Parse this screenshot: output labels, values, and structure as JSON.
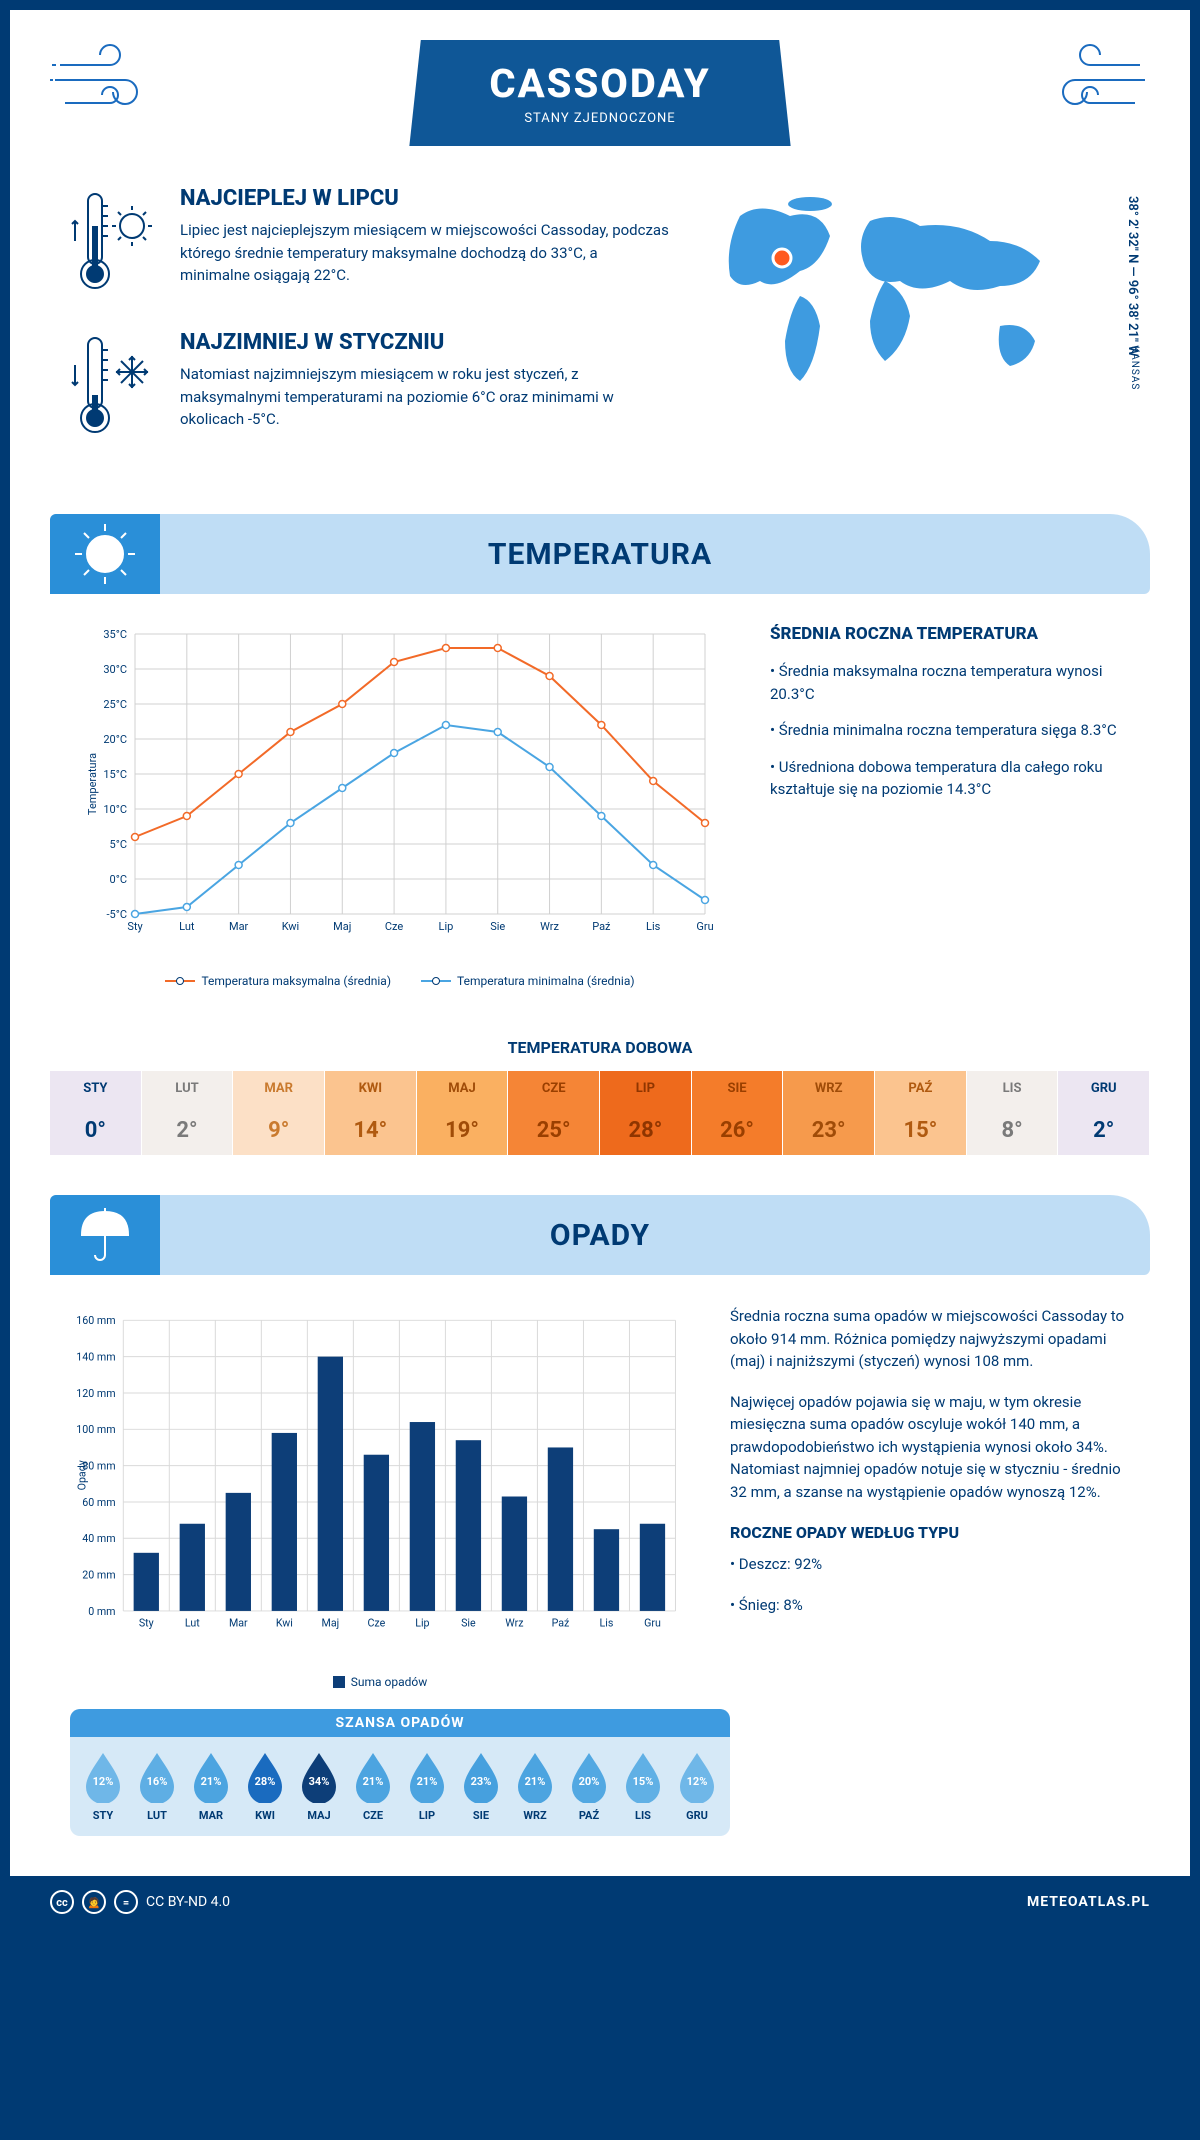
{
  "header": {
    "city": "CASSODAY",
    "country": "STANY ZJEDNOCZONE"
  },
  "location": {
    "coords": "38° 2' 32\" N — 96° 38' 21\" W",
    "region": "KANSAS",
    "marker_color": "#ff5a1f"
  },
  "facts": {
    "warmest": {
      "title": "NAJCIEPLEJ W LIPCU",
      "text": "Lipiec jest najcieplejszym miesiącem w miejscowości Cassoday, podczas którego średnie temperatury maksymalne dochodzą do 33°C, a minimalne osiągają 22°C."
    },
    "coldest": {
      "title": "NAJZIMNIEJ W STYCZNIU",
      "text": "Natomiast najzimniejszym miesiącem w roku jest styczeń, z maksymalnymi temperaturami na poziomie 6°C oraz minimami w okolicach -5°C."
    }
  },
  "temperature": {
    "section_title": "TEMPERATURA",
    "chart": {
      "months": [
        "Sty",
        "Lut",
        "Mar",
        "Kwi",
        "Maj",
        "Cze",
        "Lip",
        "Sie",
        "Wrz",
        "Paź",
        "Lis",
        "Gru"
      ],
      "max_series": [
        6,
        9,
        15,
        21,
        25,
        31,
        33,
        33,
        29,
        22,
        14,
        8
      ],
      "min_series": [
        -5,
        -4,
        2,
        8,
        13,
        18,
        22,
        21,
        16,
        9,
        2,
        -3
      ],
      "y_min": -5,
      "y_max": 35,
      "y_step": 5,
      "y_axis_title": "Temperatura",
      "max_color": "#f26a28",
      "min_color": "#4aa5e2",
      "grid_color": "#d9d9d9",
      "legend_max": "Temperatura maksymalna (średnia)",
      "legend_min": "Temperatura minimalna (średnia)"
    },
    "stats": {
      "title": "ŚREDNIA ROCZNA TEMPERATURA",
      "b1": "• Średnia maksymalna roczna temperatura wynosi 20.3°C",
      "b2": "• Średnia minimalna roczna temperatura sięga 8.3°C",
      "b3": "• Uśredniona dobowa temperatura dla całego roku kształtuje się na poziomie 14.3°C"
    },
    "daily": {
      "title": "TEMPERATURA DOBOWA",
      "months": [
        "STY",
        "LUT",
        "MAR",
        "KWI",
        "MAJ",
        "CZE",
        "LIP",
        "SIE",
        "WRZ",
        "PAŹ",
        "LIS",
        "GRU"
      ],
      "values": [
        "0°",
        "2°",
        "9°",
        "14°",
        "19°",
        "25°",
        "28°",
        "26°",
        "23°",
        "15°",
        "8°",
        "2°"
      ],
      "colors": [
        "#ece6f2",
        "#f3efec",
        "#fce0c6",
        "#fbc48f",
        "#fab061",
        "#f58536",
        "#ee6a1c",
        "#f47c2a",
        "#f69a4c",
        "#fbc48f",
        "#f3efec",
        "#ece6f2"
      ],
      "text_colors": [
        "#003a73",
        "#7a7a7a",
        "#c97a2e",
        "#b05a10",
        "#a04c08",
        "#9a3f00",
        "#8f3500",
        "#9a3f00",
        "#a04c08",
        "#b05a10",
        "#7a7a7a",
        "#003a73"
      ]
    }
  },
  "precip": {
    "section_title": "OPADY",
    "chart": {
      "months": [
        "Sty",
        "Lut",
        "Mar",
        "Kwi",
        "Maj",
        "Cze",
        "Lip",
        "Sie",
        "Wrz",
        "Paź",
        "Lis",
        "Gru"
      ],
      "values": [
        32,
        48,
        65,
        98,
        140,
        86,
        104,
        94,
        63,
        90,
        45,
        48
      ],
      "y_min": 0,
      "y_max": 160,
      "y_step": 20,
      "y_unit": "mm",
      "y_axis_title": "Opady",
      "bar_color": "#0d3e78",
      "grid_color": "#d9d9d9",
      "legend": "Suma opadów"
    },
    "text": {
      "p1": "Średnia roczna suma opadów w miejscowości Cassoday to około 914 mm. Różnica pomiędzy najwyższymi opadami (maj) i najniższymi (styczeń) wynosi 108 mm.",
      "p2": "Najwięcej opadów pojawia się w maju, w tym okresie miesięczna suma opadów oscyluje wokół 140 mm, a prawdopodobieństwo ich wystąpienia wynosi około 34%. Natomiast najmniej opadów notuje się w styczniu - średnio 32 mm, a szanse na wystąpienie opadów wynoszą 12%.",
      "type_title": "ROCZNE OPADY WEDŁUG TYPU",
      "rain": "• Deszcz: 92%",
      "snow": "• Śnieg: 8%"
    },
    "chance": {
      "title": "SZANSA OPADÓW",
      "months": [
        "STY",
        "LUT",
        "MAR",
        "KWI",
        "MAJ",
        "CZE",
        "LIP",
        "SIE",
        "WRZ",
        "PAŹ",
        "LIS",
        "GRU"
      ],
      "values": [
        "12%",
        "16%",
        "21%",
        "28%",
        "34%",
        "21%",
        "21%",
        "23%",
        "21%",
        "20%",
        "15%",
        "12%"
      ],
      "colors": [
        "#6fb7e8",
        "#5eaee4",
        "#4ca4e0",
        "#1a6bbf",
        "#0d3e78",
        "#4ca4e0",
        "#4ca4e0",
        "#46a0de",
        "#4ca4e0",
        "#52a8e2",
        "#60b0e5",
        "#6fb7e8"
      ]
    }
  },
  "footer": {
    "license": "CC BY-ND 4.0",
    "site": "METEOATLAS.PL"
  },
  "colors": {
    "primary": "#0f5797",
    "dark": "#003a73",
    "light_blue": "#bfddf5",
    "mid_blue": "#2a8fd8"
  }
}
